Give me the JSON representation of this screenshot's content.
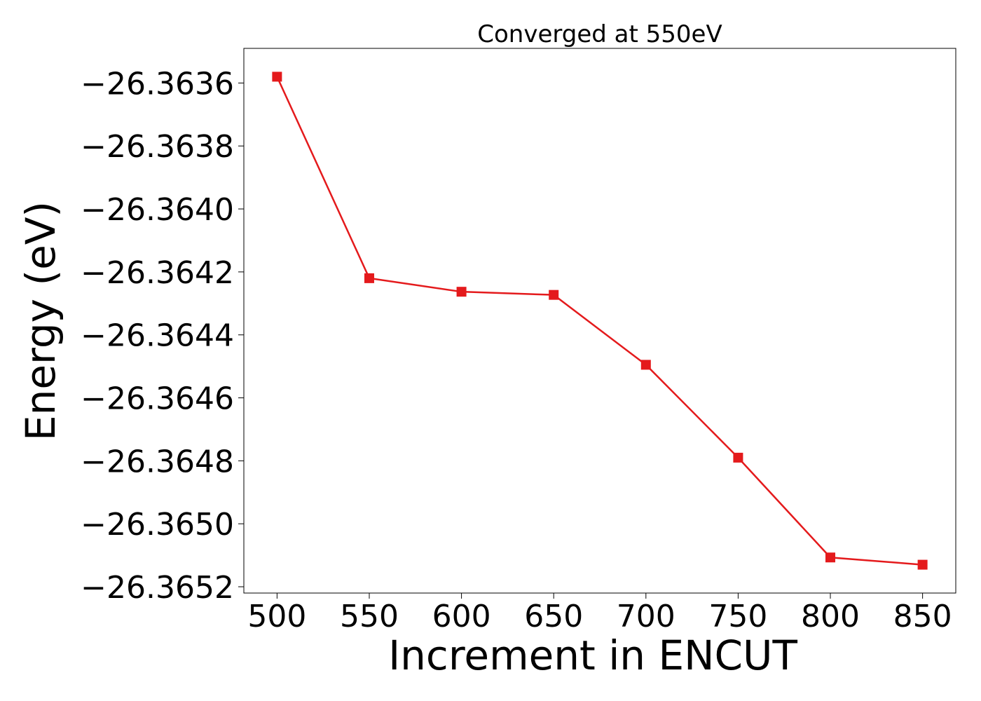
{
  "chart_data": {
    "type": "line",
    "title": "Converged at 550eV",
    "xlabel": "Increment in ENCUT",
    "ylabel": "Energy (eV)",
    "x": [
      500,
      550,
      600,
      650,
      700,
      750,
      800,
      850
    ],
    "xlim": [
      482,
      868
    ],
    "ylim": [
      -26.36522,
      -26.36349
    ],
    "xticks": [
      500,
      550,
      600,
      650,
      700,
      750,
      800,
      850
    ],
    "yticks": [
      -26.3636,
      -26.3638,
      -26.364,
      -26.3642,
      -26.3644,
      -26.3646,
      -26.3648,
      -26.365,
      -26.3652
    ],
    "ytick_labels": [
      "−26.3636",
      "−26.3638",
      "−26.3640",
      "−26.3642",
      "−26.3644",
      "−26.3646",
      "−26.3648",
      "−26.3650",
      "−26.3652"
    ],
    "series": [
      {
        "color": "#e41a1c",
        "marker": "square",
        "values": [
          -26.36358,
          -26.36422,
          -26.364263,
          -26.364273,
          -26.364495,
          -26.36479,
          -26.365107,
          -26.36513
        ]
      }
    ],
    "grid": false,
    "legend": "none"
  }
}
